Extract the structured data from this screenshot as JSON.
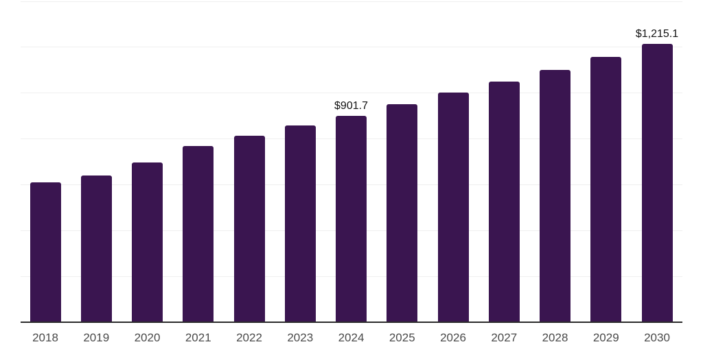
{
  "chart_data": {
    "type": "bar",
    "title": "",
    "xlabel": "",
    "ylabel": "",
    "categories": [
      "2018",
      "2019",
      "2020",
      "2021",
      "2022",
      "2023",
      "2024",
      "2025",
      "2026",
      "2027",
      "2028",
      "2029",
      "2030"
    ],
    "values": [
      609,
      640,
      696,
      770,
      814,
      860,
      901.7,
      950,
      1002,
      1050,
      1102,
      1159,
      1215.1
    ],
    "labeled_points": [
      {
        "category": "2024",
        "label": "$901.7"
      },
      {
        "category": "2030",
        "label": "$1,215.1"
      }
    ],
    "ylim": [
      0,
      1400
    ],
    "gridline_interval": 200,
    "grid": true,
    "legend": false,
    "y_axis_labels_visible": false,
    "colors": {
      "bar": "#3A1550",
      "background": "#ffffff",
      "gridline": "#efefef",
      "axis_line": "#2b2b2b",
      "tick_label": "#4a4a4a",
      "data_label": "#111111"
    }
  }
}
